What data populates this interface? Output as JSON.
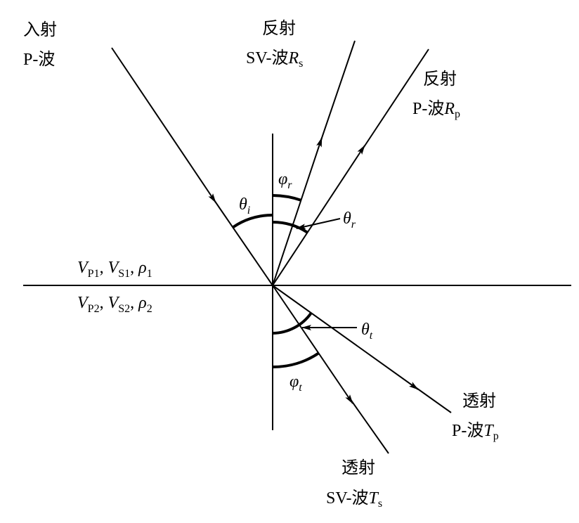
{
  "labels": {
    "incident_p": {
      "line1": "入射",
      "line2": "P-波"
    },
    "reflected_sv": {
      "line1": "反射",
      "line2": "SV-波",
      "symbol": "R",
      "sub": "s"
    },
    "reflected_p": {
      "line1": "反射",
      "line2": "P-波",
      "symbol": "R",
      "sub": "p"
    },
    "transmitted_p": {
      "line1": "透射",
      "line2": "P-波",
      "symbol": "T",
      "sub": "p"
    },
    "transmitted_sv": {
      "line1": "透射",
      "line2": "SV-波",
      "symbol": "T",
      "sub": "s"
    },
    "medium1": {
      "v": "V",
      "p": "P1",
      "sep1": ", ",
      "s": "S1",
      "sep2": ", ",
      "rho": "ρ",
      "rsub": "1"
    },
    "medium2": {
      "v": "V",
      "p": "P2",
      "sep1": ", ",
      "s": "S2",
      "sep2": ", ",
      "rho": "ρ",
      "rsub": "2"
    }
  },
  "angles": {
    "theta_i": {
      "sym": "θ",
      "sub": "i"
    },
    "phi_r": {
      "sym": "φ",
      "sub": "r"
    },
    "theta_r": {
      "sym": "θ",
      "sub": "r"
    },
    "theta_t": {
      "sym": "θ",
      "sub": "t"
    },
    "phi_t": {
      "sym": "φ",
      "sub": "t"
    }
  }
}
